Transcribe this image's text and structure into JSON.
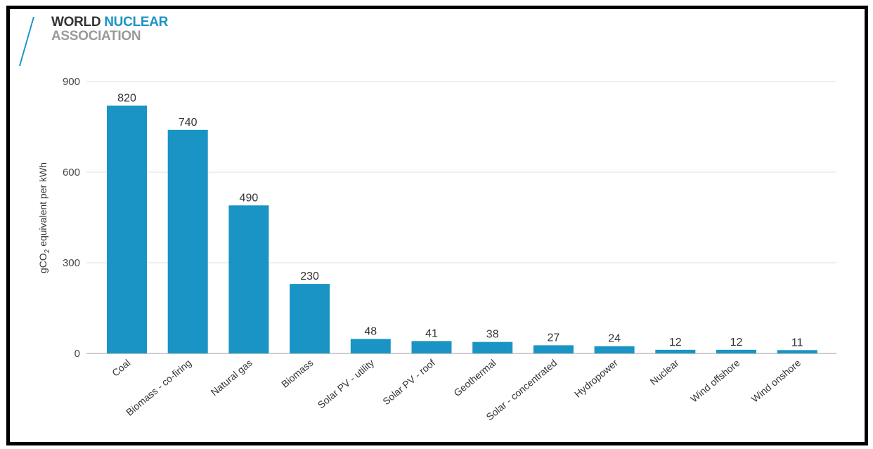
{
  "logo": {
    "line1_part1": "WORLD",
    "line1_part2": "NUCLEAR",
    "line2": "ASSOCIATION",
    "colors": {
      "dark": "#333333",
      "blue": "#1a94c4",
      "grey": "#9a9a9a"
    }
  },
  "chart_data": {
    "type": "bar",
    "title": "",
    "xlabel": "",
    "ylabel": "gCO2 equivalent per kWh",
    "categories": [
      "Coal",
      "Biomass - co-firing",
      "Natural gas",
      "Biomass",
      "Solar PV - utility",
      "Solar PV - roof",
      "Geothermal",
      "Solar - concentrated",
      "Hydropower",
      "Nuclear",
      "Wind offshore",
      "Wind onshore"
    ],
    "values": [
      820,
      740,
      490,
      230,
      48,
      41,
      38,
      27,
      24,
      12,
      12,
      11
    ],
    "ylim": [
      0,
      900
    ],
    "yticks": [
      0,
      300,
      600,
      900
    ],
    "grid": true,
    "legend": "none",
    "bar_color": "#1a94c4"
  }
}
